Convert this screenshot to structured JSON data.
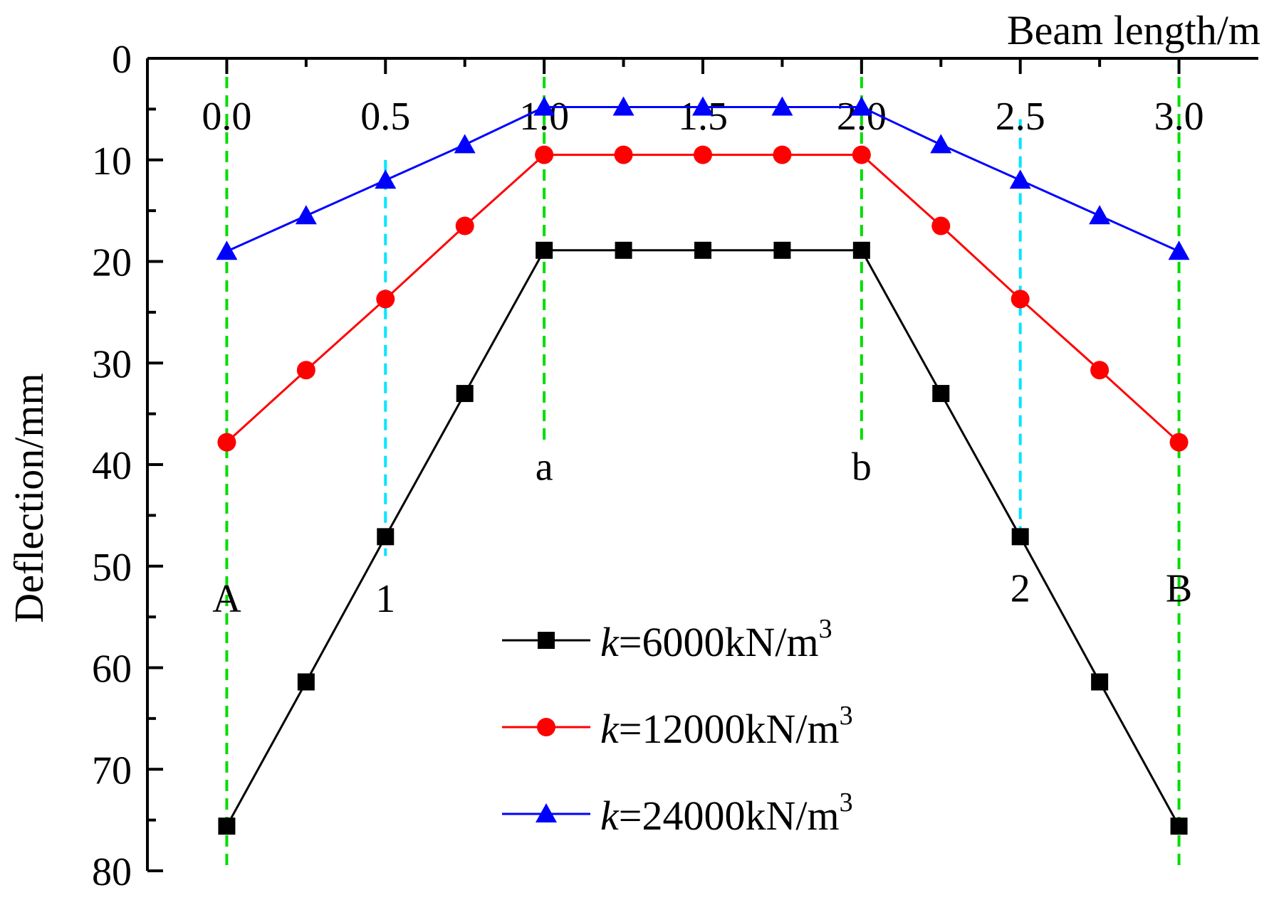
{
  "chart_data": {
    "type": "line",
    "xlabel": "Beam length/m",
    "ylabel": "Deflection/mm",
    "xlim": [
      -0.25,
      3.25
    ],
    "ylim": [
      0,
      80
    ],
    "y_inverted": true,
    "x_axis_position": "top",
    "x_ticks": [
      "0.0",
      "0.5",
      "1.0",
      "1.5",
      "2.0",
      "2.5",
      "3.0"
    ],
    "y_ticks": [
      "0",
      "10",
      "20",
      "30",
      "40",
      "50",
      "60",
      "70",
      "80"
    ],
    "grid": false,
    "legend_position": "bottom-center",
    "x": [
      0,
      0.25,
      0.5,
      0.75,
      1.0,
      1.25,
      1.5,
      1.75,
      2.0,
      2.25,
      2.5,
      2.75,
      3.0
    ],
    "series": [
      {
        "name_prefix": "k",
        "name_value": "=6000kN/m",
        "name_sup": "3",
        "color": "#000000",
        "marker": "square",
        "values": [
          75.6,
          61.4,
          47.1,
          33.0,
          18.9,
          18.9,
          18.9,
          18.9,
          18.9,
          33.0,
          47.1,
          61.4,
          75.6
        ]
      },
      {
        "name_prefix": "k",
        "name_value": "=12000kN/m",
        "name_sup": "3",
        "color": "#ff0000",
        "marker": "circle",
        "values": [
          37.8,
          30.7,
          23.7,
          16.5,
          9.5,
          9.5,
          9.5,
          9.5,
          9.5,
          16.5,
          23.7,
          30.7,
          37.8
        ]
      },
      {
        "name_prefix": "k",
        "name_value": "=24000kN/m",
        "name_sup": "3",
        "color": "#0000ff",
        "marker": "triangle",
        "values": [
          19.0,
          15.5,
          12.0,
          8.5,
          4.8,
          4.8,
          4.8,
          4.8,
          4.8,
          8.5,
          12.0,
          15.5,
          19.0
        ]
      }
    ],
    "reference_lines": [
      {
        "x": 0.0,
        "label": "A",
        "color": "#00dd00",
        "y_from": 0,
        "y_to": 80,
        "label_y": 54.5
      },
      {
        "x": 0.5,
        "label": "1",
        "color": "#00e5ff",
        "y_from": 10,
        "y_to": 49,
        "label_y": 54.5
      },
      {
        "x": 1.0,
        "label": "a",
        "color": "#00dd00",
        "y_from": 0,
        "y_to": 38,
        "label_y": 41.5
      },
      {
        "x": 2.0,
        "label": "b",
        "color": "#00dd00",
        "y_from": 0,
        "y_to": 38,
        "label_y": 41.5
      },
      {
        "x": 2.5,
        "label": "2",
        "color": "#00e5ff",
        "y_from": 6,
        "y_to": 47,
        "label_y": 53.5
      },
      {
        "x": 3.0,
        "label": "B",
        "color": "#00dd00",
        "y_from": 0,
        "y_to": 80,
        "label_y": 53.5
      }
    ]
  }
}
